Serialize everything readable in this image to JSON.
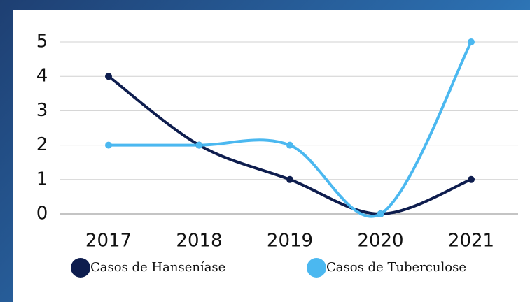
{
  "chart_data": {
    "type": "line",
    "categories": [
      "2017",
      "2018",
      "2019",
      "2020",
      "2021"
    ],
    "series": [
      {
        "name": "Casos de Hanseníase",
        "color": "#0e1d4e",
        "values": [
          4,
          2,
          1,
          0,
          1
        ]
      },
      {
        "name": "Casos de Tuberculose",
        "color": "#4bb8f0",
        "values": [
          2,
          2,
          2,
          0,
          5
        ]
      }
    ],
    "ylim": [
      0,
      5
    ],
    "yticks": [
      0,
      1,
      2,
      3,
      4,
      5
    ],
    "grid": true,
    "legend": "bottom"
  }
}
